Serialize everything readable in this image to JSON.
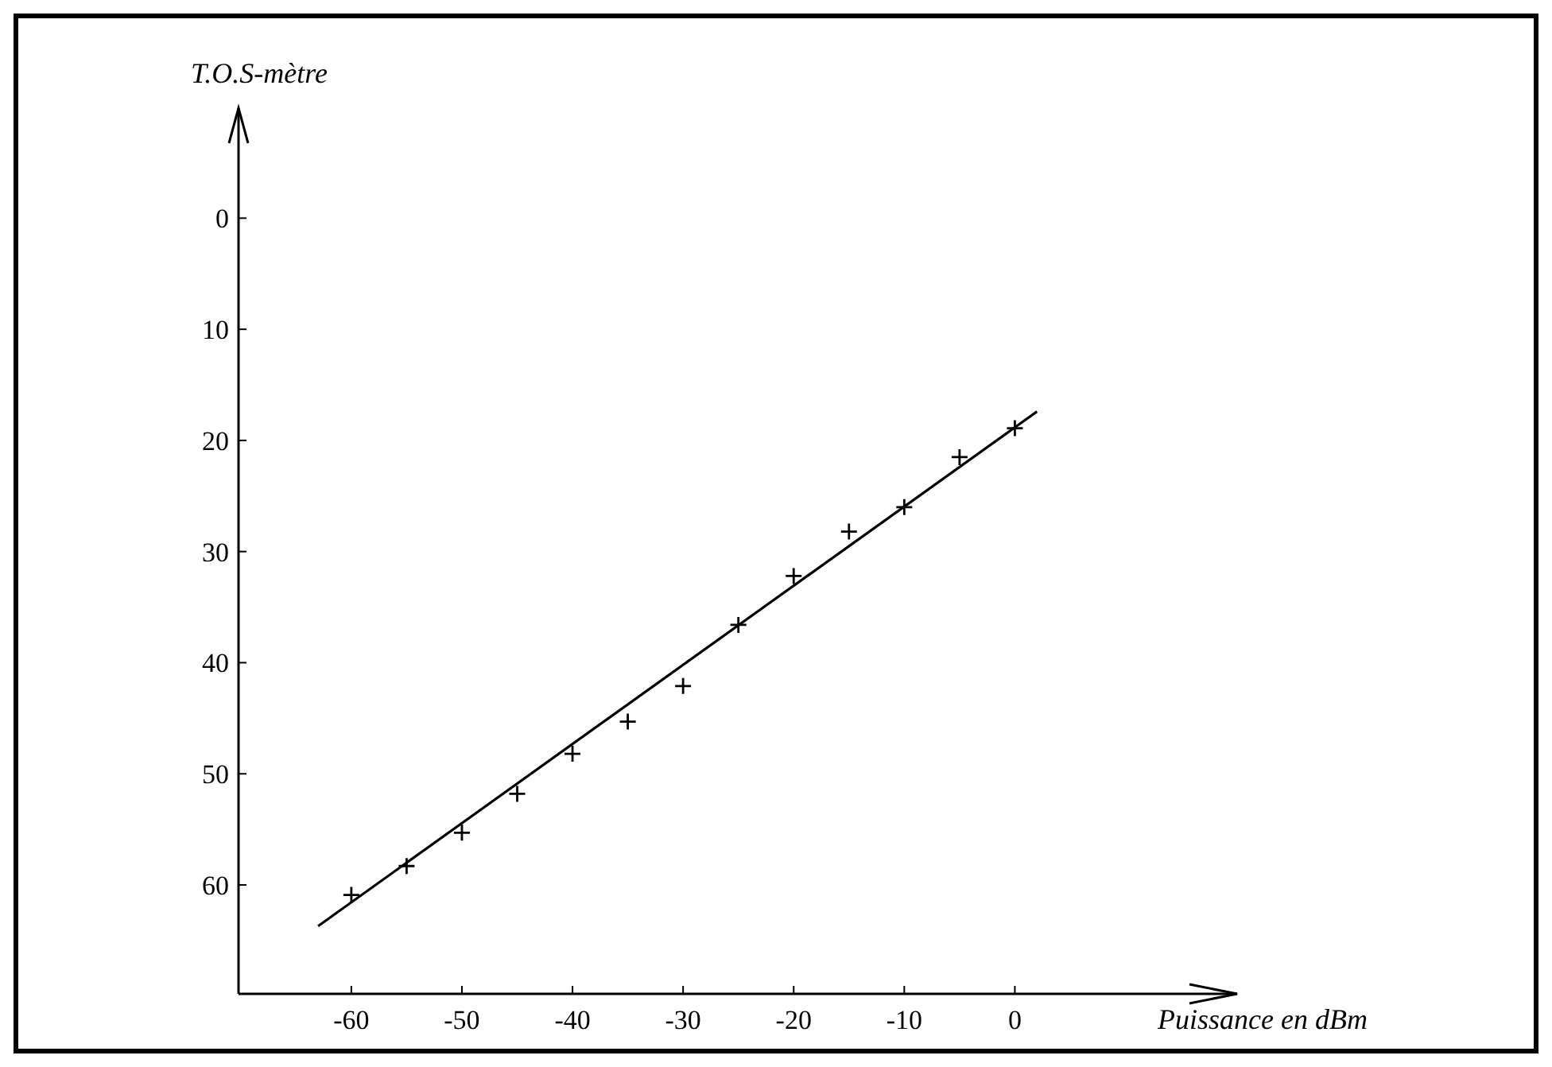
{
  "chart_data": {
    "type": "scatter",
    "xlabel": "Puissance en dBm",
    "ylabel": "T.O.S-mètre",
    "xlim": [
      -70.2,
      20.1
    ],
    "ylim": [
      69.8,
      -9.9
    ],
    "xticks": [
      -60,
      -50,
      -40,
      -30,
      -20,
      -10,
      0
    ],
    "yticks": [
      0,
      10,
      20,
      30,
      40,
      50,
      60
    ],
    "series": [
      {
        "marker": "cross",
        "color": "#000000",
        "x": [
          -60,
          -55,
          -50,
          -45,
          -40,
          -35,
          -30,
          -25,
          -20,
          -15,
          -10,
          -5,
          0
        ],
        "values": [
          60.9,
          58.3,
          55.3,
          51.8,
          48.2,
          45.3,
          42.1,
          36.6,
          32.2,
          28.2,
          26.0,
          21.5,
          18.9
        ]
      },
      {
        "type": "line",
        "color": "#000000",
        "x": [
          -63,
          2
        ],
        "values": [
          63.7,
          17.4
        ]
      }
    ]
  }
}
